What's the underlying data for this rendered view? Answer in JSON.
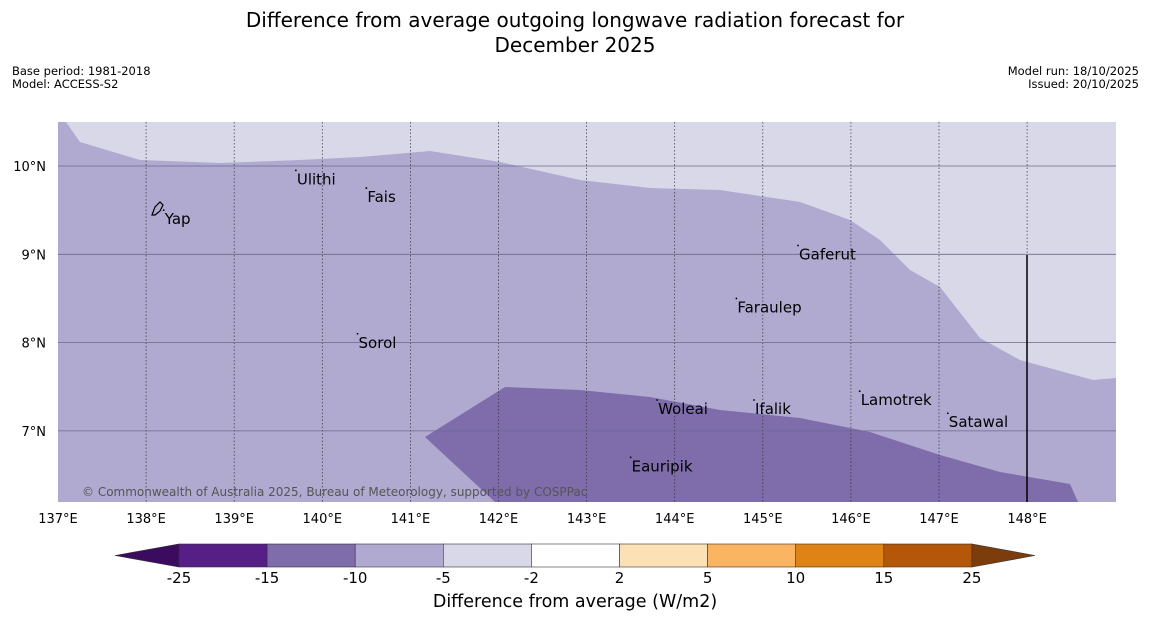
{
  "title": {
    "line1": "Difference from average outgoing longwave radiation forecast for",
    "line2": "December 2025"
  },
  "meta": {
    "base_period": "Base period: 1981-2018",
    "model": "Model: ACCESS-S2",
    "model_run": "Model run: 18/10/2025",
    "issued": "Issued: 20/10/2025"
  },
  "copyright": "© Commonwealth of Australia 2025, Bureau of Meteorology, supported by COSPPac",
  "map": {
    "lon_range": [
      137,
      149
    ],
    "lat_range": [
      6.2,
      10.5
    ],
    "lon_labels": [
      "137°E",
      "138°E",
      "139°E",
      "140°E",
      "141°E",
      "142°E",
      "143°E",
      "144°E",
      "145°E",
      "146°E",
      "147°E",
      "148°E"
    ],
    "lat_labels": [
      "10°N",
      "9°N",
      "8°N",
      "7°N"
    ],
    "places": [
      {
        "name": "Yap",
        "lon": 138.2,
        "lat": 9.5
      },
      {
        "name": "Ulithi",
        "lon": 139.7,
        "lat": 9.95
      },
      {
        "name": "Fais",
        "lon": 140.5,
        "lat": 9.75
      },
      {
        "name": "Gaferut",
        "lon": 145.4,
        "lat": 9.1
      },
      {
        "name": "Faraulep",
        "lon": 144.7,
        "lat": 8.5
      },
      {
        "name": "Sorol",
        "lon": 140.4,
        "lat": 8.1
      },
      {
        "name": "Lamotrek",
        "lon": 146.1,
        "lat": 7.45
      },
      {
        "name": "Woleai",
        "lon": 143.8,
        "lat": 7.35
      },
      {
        "name": "Ifalik",
        "lon": 144.9,
        "lat": 7.35
      },
      {
        "name": "Satawal",
        "lon": 147.1,
        "lat": 7.2
      },
      {
        "name": "Eauripik",
        "lon": 143.5,
        "lat": 6.7
      }
    ]
  },
  "colorbar": {
    "title": "Difference from average (W/m2)",
    "ticks": [
      "-25",
      "-15",
      "-10",
      "-5",
      "-2",
      "2",
      "5",
      "10",
      "15",
      "25"
    ],
    "colors": [
      "#561f87",
      "#7e6daa",
      "#b0a9d0",
      "#d8d8e9",
      "#ffffff",
      "#fde1b6",
      "#fbb461",
      "#e08316",
      "#b45708"
    ],
    "extend_low": "#3b0b5f",
    "extend_high": "#7d3c0c",
    "fill_light": "#d8d8e9",
    "fill_mid": "#b0a9d0",
    "fill_dark": "#7e6daa"
  }
}
